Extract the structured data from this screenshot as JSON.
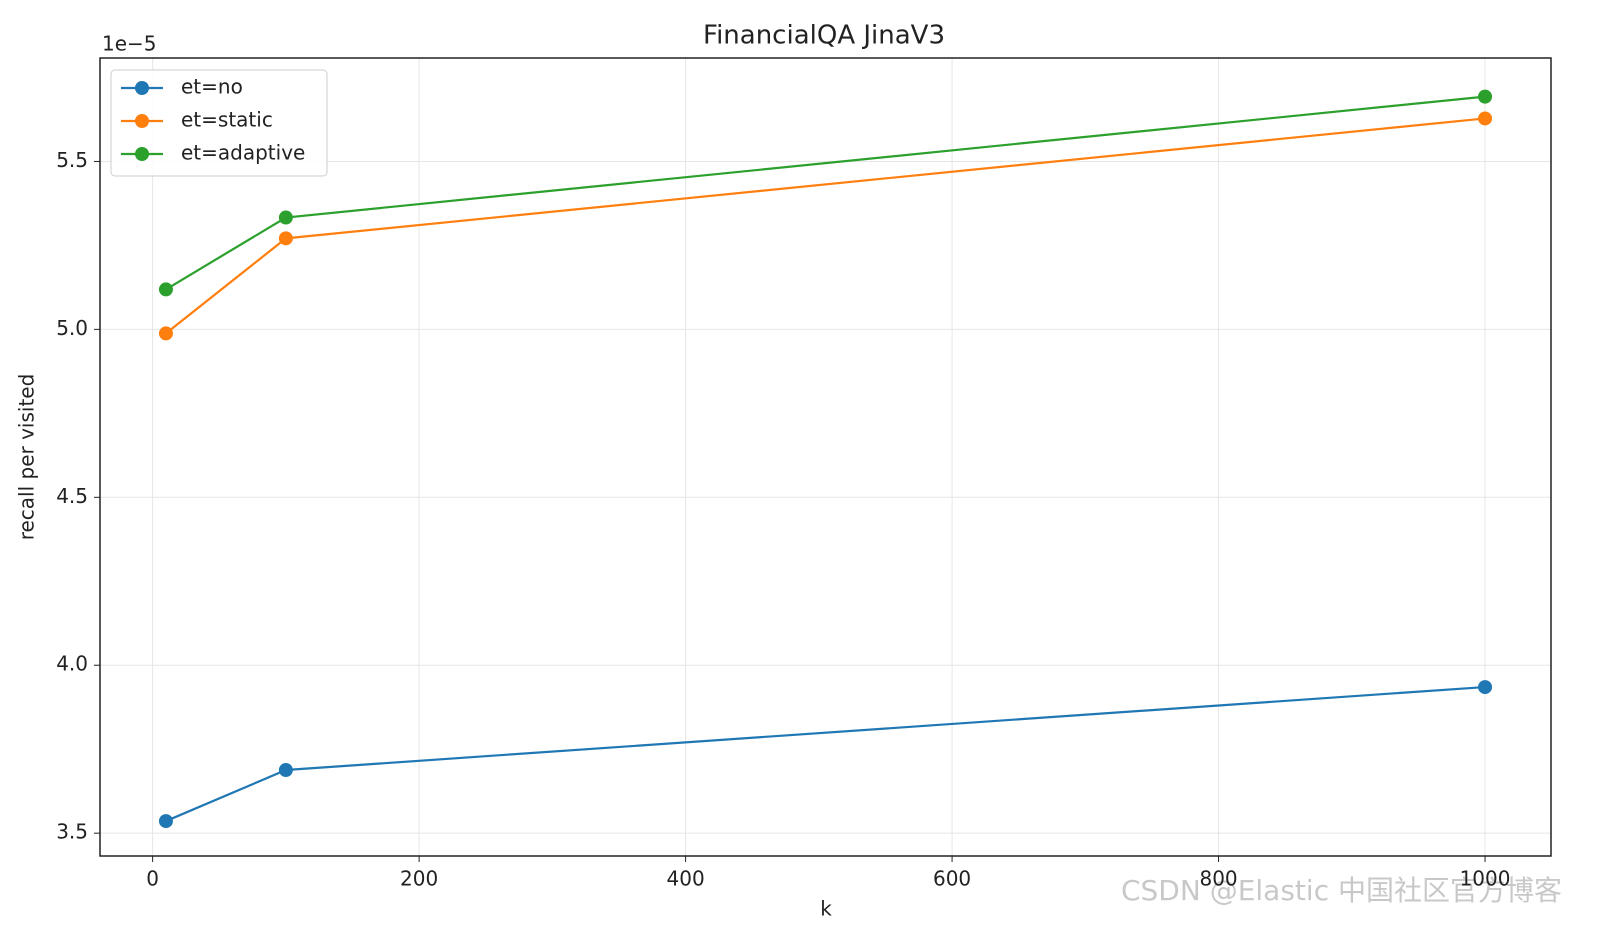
{
  "chart_data": {
    "type": "line",
    "title": "FinancialQA JinaV3",
    "x_label": "k",
    "y_label": "recall per visited",
    "y_offset_label": "1e−5",
    "x": [
      10,
      100,
      1000
    ],
    "series": [
      {
        "name": "et=no",
        "color": "#1f77b4",
        "values": [
          3.536,
          3.688,
          3.935
        ]
      },
      {
        "name": "et=static",
        "color": "#ff7f0e",
        "values": [
          4.988,
          5.271,
          5.628
        ]
      },
      {
        "name": "et=adaptive",
        "color": "#2ca02c",
        "values": [
          5.119,
          5.333,
          5.693
        ]
      }
    ],
    "xlim": [
      -39.5,
      1049.5
    ],
    "xticks": [
      0,
      200,
      400,
      600,
      800,
      1000
    ],
    "ylim": [
      3.432,
      5.808
    ],
    "yticks": [
      3.5,
      {
        "value": 4,
        "label": "4.0"
      },
      4.5,
      {
        "value": 5,
        "label": "5.0"
      },
      5.5
    ],
    "grid": true,
    "legend": "upper left",
    "watermark": "CSDN @Elastic 中国社区官方博客"
  }
}
